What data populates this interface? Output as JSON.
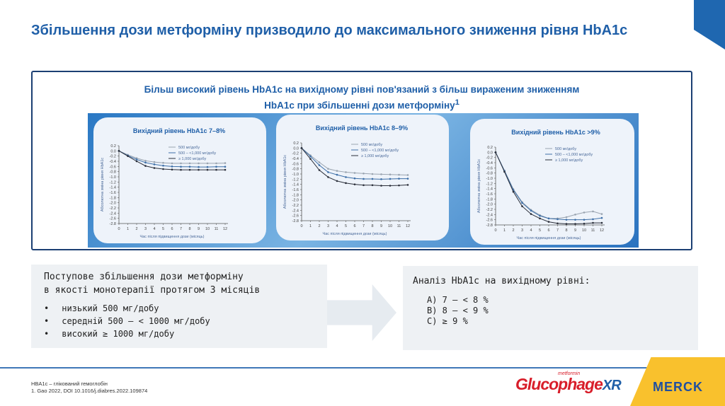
{
  "title": "Збільшення дози метформіну призводило до максимального зниження рівня HbA1c",
  "subtitle_line1": "Більш високий рівень HbA1c на вихідному рівні пов'язаний з більш вираженим зниженням",
  "subtitle_line2": "HbA1c при збільшенні дози метформіну",
  "subtitle_sup": "1",
  "colors": {
    "accent": "#1f5fa8",
    "s1": "#9aa4b0",
    "s2": "#3d6fa8",
    "s3": "#2b2f3a",
    "brand_yellow": "#f9c12d"
  },
  "chart_data": [
    {
      "type": "line",
      "title": "Вихідний рівень HbA1c 7–8%",
      "xlabel": "Час після підвищення дози (місяць)",
      "ylabel": "Абсолютна зміна рівня HbA1c",
      "ylim": [
        -2.8,
        0.2
      ],
      "xlim": [
        0,
        12
      ],
      "legend": "top-right",
      "x": [
        0,
        1,
        2,
        3,
        4,
        5,
        6,
        7,
        8,
        9,
        10,
        11,
        12
      ],
      "series": [
        {
          "name": "500 мг/добу",
          "values": [
            0,
            -0.15,
            -0.28,
            -0.38,
            -0.43,
            -0.46,
            -0.48,
            -0.48,
            -0.48,
            -0.48,
            -0.48,
            -0.48,
            -0.47
          ]
        },
        {
          "name": "500 – <1,000 мг/добу",
          "values": [
            0,
            -0.18,
            -0.33,
            -0.45,
            -0.52,
            -0.57,
            -0.6,
            -0.61,
            -0.61,
            -0.62,
            -0.62,
            -0.61,
            -0.61
          ]
        },
        {
          "name": "≥ 1,000 мг/добу",
          "values": [
            0,
            -0.2,
            -0.4,
            -0.58,
            -0.66,
            -0.7,
            -0.72,
            -0.73,
            -0.73,
            -0.73,
            -0.73,
            -0.73,
            -0.73
          ]
        }
      ]
    },
    {
      "type": "line",
      "title": "Вихідний рівень HbA1c 8–9%",
      "xlabel": "Час після підвищення дози (місяць)",
      "ylabel": "Абсолютна зміна рівня HbA1c",
      "ylim": [
        -2.8,
        0.2
      ],
      "xlim": [
        0,
        12
      ],
      "legend": "top-right",
      "x": [
        0,
        1,
        2,
        3,
        4,
        5,
        6,
        7,
        8,
        9,
        10,
        11,
        12
      ],
      "series": [
        {
          "name": "500 мг/добу",
          "values": [
            0,
            -0.28,
            -0.55,
            -0.8,
            -0.88,
            -0.93,
            -0.96,
            -0.98,
            -1.0,
            -1.01,
            -1.02,
            -1.03,
            -1.04
          ]
        },
        {
          "name": "500 – <1,000 мг/добу",
          "values": [
            0,
            -0.32,
            -0.66,
            -0.93,
            -1.03,
            -1.12,
            -1.17,
            -1.19,
            -1.19,
            -1.2,
            -1.19,
            -1.18,
            -1.18
          ]
        },
        {
          "name": "≥ 1,000 мг/добу",
          "values": [
            0,
            -0.42,
            -0.85,
            -1.12,
            -1.27,
            -1.35,
            -1.4,
            -1.43,
            -1.43,
            -1.45,
            -1.45,
            -1.44,
            -1.42
          ]
        }
      ]
    },
    {
      "type": "line",
      "title": "Вихідний рівень HbA1c >9%",
      "xlabel": "Час після підвищення дози (місяць)",
      "ylabel": "Абсолютна зміна рівня HbA1c",
      "ylim": [
        -2.8,
        0.2
      ],
      "xlim": [
        0,
        12
      ],
      "legend": "top-right",
      "x": [
        0,
        1,
        2,
        3,
        4,
        5,
        6,
        7,
        8,
        9,
        10,
        11,
        12
      ],
      "series": [
        {
          "name": "500 мг/добу",
          "values": [
            0,
            -0.7,
            -1.42,
            -1.92,
            -2.22,
            -2.42,
            -2.55,
            -2.55,
            -2.5,
            -2.4,
            -2.32,
            -2.28,
            -2.38
          ]
        },
        {
          "name": "500 – <1,000 мг/добу",
          "values": [
            0,
            -0.72,
            -1.45,
            -1.95,
            -2.25,
            -2.45,
            -2.55,
            -2.58,
            -2.6,
            -2.6,
            -2.6,
            -2.58,
            -2.53
          ]
        },
        {
          "name": "≥ 1,000 мг/добу",
          "values": [
            0,
            -0.75,
            -1.52,
            -2.08,
            -2.38,
            -2.55,
            -2.68,
            -2.74,
            -2.76,
            -2.76,
            -2.75,
            -2.72,
            -2.72
          ]
        }
      ]
    }
  ],
  "left_box": {
    "heading_line1": "Поступове збільшення дози метформіну",
    "heading_line2": "в якості монотерапії протягом 3 місяців",
    "items": [
      "низький 500 мг/добу",
      "середній 500 – < 1000 мг/добу",
      "високий ≥ 1000 мг/добу"
    ]
  },
  "right_box": {
    "heading": "Аналіз HbA1c на вихідному рівні:",
    "items": [
      "A) 7 – < 8 %",
      "B) 8 – < 9 %",
      "C) ≥ 9 %"
    ]
  },
  "footer": {
    "abbr": "HBA1c – глікований гемоглобін",
    "ref": "1. Gao 2022, DOI 10.1016/j.diabres.2022.109874"
  },
  "logos": {
    "product": "Glucophage",
    "product_sup": "metformin",
    "product_suffix": "XR",
    "company": "MERCK"
  }
}
